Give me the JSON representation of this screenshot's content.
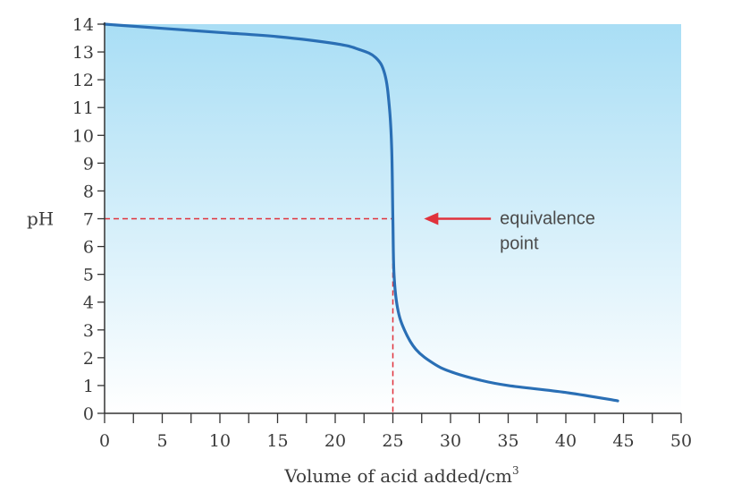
{
  "chart_data": {
    "type": "line",
    "xlabel": "Volume of acid added/cm",
    "xlabel_sup": "3",
    "ylabel": "pH",
    "xlim": [
      0,
      50
    ],
    "ylim": [
      0,
      14
    ],
    "x_ticks": [
      0,
      5,
      10,
      15,
      20,
      25,
      30,
      35,
      40,
      45,
      50
    ],
    "y_ticks": [
      0,
      1,
      2,
      3,
      4,
      5,
      6,
      7,
      8,
      9,
      10,
      11,
      12,
      13,
      14
    ],
    "series": [
      {
        "color": "#2a6fb5",
        "points": [
          [
            0,
            14.0
          ],
          [
            5,
            13.85
          ],
          [
            10,
            13.7
          ],
          [
            15,
            13.55
          ],
          [
            20,
            13.3
          ],
          [
            22,
            13.1
          ],
          [
            23.5,
            12.8
          ],
          [
            24.3,
            12.2
          ],
          [
            24.7,
            11.0
          ],
          [
            24.9,
            9.5
          ],
          [
            25.0,
            7.0
          ],
          [
            25.1,
            5.0
          ],
          [
            25.4,
            3.8
          ],
          [
            26,
            3.0
          ],
          [
            27,
            2.3
          ],
          [
            28.5,
            1.8
          ],
          [
            30,
            1.5
          ],
          [
            32.5,
            1.2
          ],
          [
            35,
            1.0
          ],
          [
            40,
            0.75
          ],
          [
            44.5,
            0.45
          ]
        ]
      }
    ],
    "equivalence": {
      "x": 25,
      "y": 7,
      "color": "#e0323c"
    },
    "annotation": {
      "lines": [
        "equivalence",
        "point"
      ],
      "arrow_color": "#e0323c"
    },
    "background_gradient": [
      "#a9def5",
      "#ffffff"
    ],
    "grid": false
  }
}
